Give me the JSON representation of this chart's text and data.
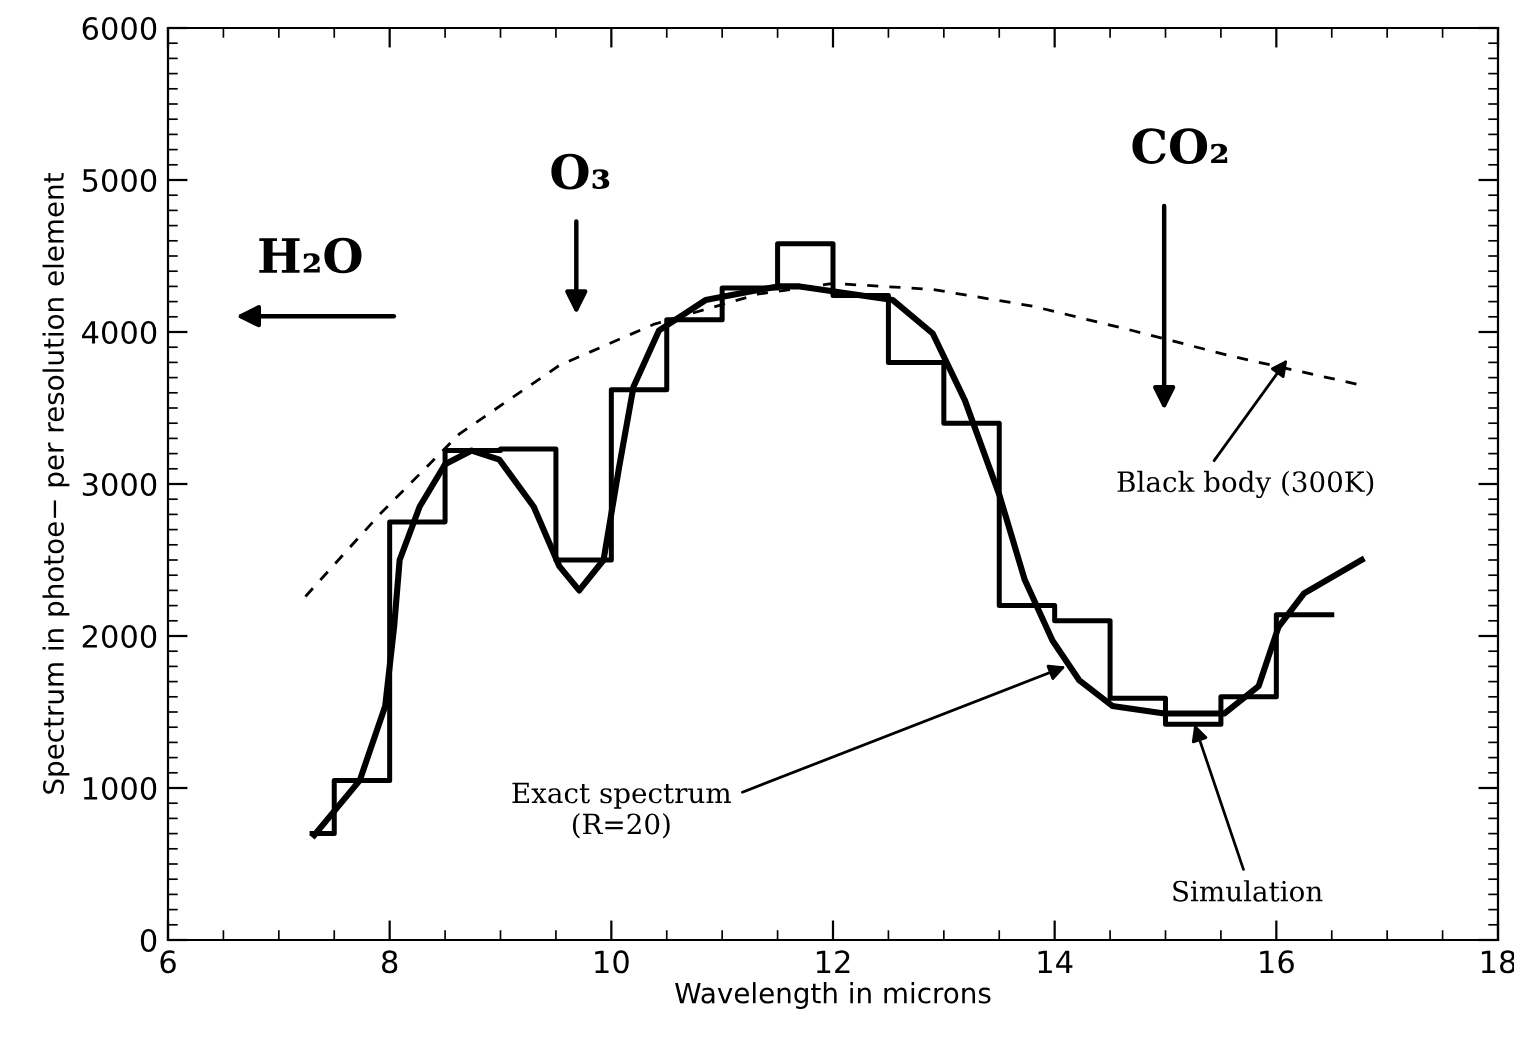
{
  "chart_data": {
    "type": "line",
    "xlabel": "Wavelength in microns",
    "ylabel": "Spectrum in photoe− per resolution element",
    "xlim": [
      6,
      18
    ],
    "xticks": [
      6,
      8,
      10,
      12,
      14,
      16,
      18
    ],
    "ylim": [
      0,
      6000
    ],
    "yticks": [
      0,
      1000,
      2000,
      3000,
      4000,
      5000,
      6000
    ],
    "grid": false,
    "series": [
      {
        "type": "step",
        "color": "#000000",
        "line_style": "solid",
        "x": [
          7.3,
          7.5,
          8.0,
          8.5,
          9.0,
          9.5,
          10.0,
          10.5,
          11.0,
          11.5,
          12.0,
          12.5,
          13.0,
          13.5,
          14.0,
          14.5,
          15.0,
          15.5,
          16.0,
          16.5
        ],
        "values": [
          700,
          1050,
          2750,
          3220,
          3230,
          2500,
          3620,
          4080,
          4290,
          4580,
          4240,
          3800,
          3400,
          2200,
          2100,
          1590,
          1420,
          1600,
          2140,
          2140
        ]
      },
      {
        "color": "#000000",
        "line_style": "solid",
        "x": [
          7.32,
          7.73,
          7.96,
          8.04,
          8.09,
          8.27,
          8.5,
          8.74,
          8.99,
          9.3,
          9.53,
          9.71,
          9.93,
          10.07,
          10.2,
          10.43,
          10.85,
          11.5,
          11.7,
          12.54,
          12.9,
          13.19,
          13.5,
          13.73,
          13.98,
          14.22,
          14.52,
          14.99,
          15.53,
          15.84,
          16.02,
          16.25,
          16.77
        ],
        "values": [
          690,
          1050,
          1540,
          2060,
          2500,
          2850,
          3130,
          3220,
          3160,
          2850,
          2460,
          2300,
          2500,
          3110,
          3640,
          4010,
          4210,
          4300,
          4300,
          4210,
          3990,
          3550,
          2930,
          2370,
          1970,
          1710,
          1540,
          1490,
          1490,
          1670,
          2060,
          2280,
          2500
        ]
      },
      {
        "color": "#000000",
        "line_style": "dashed",
        "x": [
          7.24,
          7.91,
          8.63,
          9.53,
          10.38,
          11.33,
          12.0,
          12.9,
          13.8,
          14.7,
          15.6,
          16.77
        ],
        "values": [
          2260,
          2800,
          3330,
          3780,
          4050,
          4250,
          4320,
          4280,
          4170,
          4010,
          3840,
          3650
        ]
      }
    ],
    "annotations": [
      "H₂O",
      "O₃",
      "CO₂",
      {
        "text": "Black body (300K)",
        "x": 16.1,
        "y": 3820
      },
      {
        "text": "Exact spectrum\n(R=20)",
        "x": 14.1,
        "y": 1800
      },
      {
        "text": "Simulation",
        "x": 15.26,
        "y": 1420
      }
    ]
  }
}
